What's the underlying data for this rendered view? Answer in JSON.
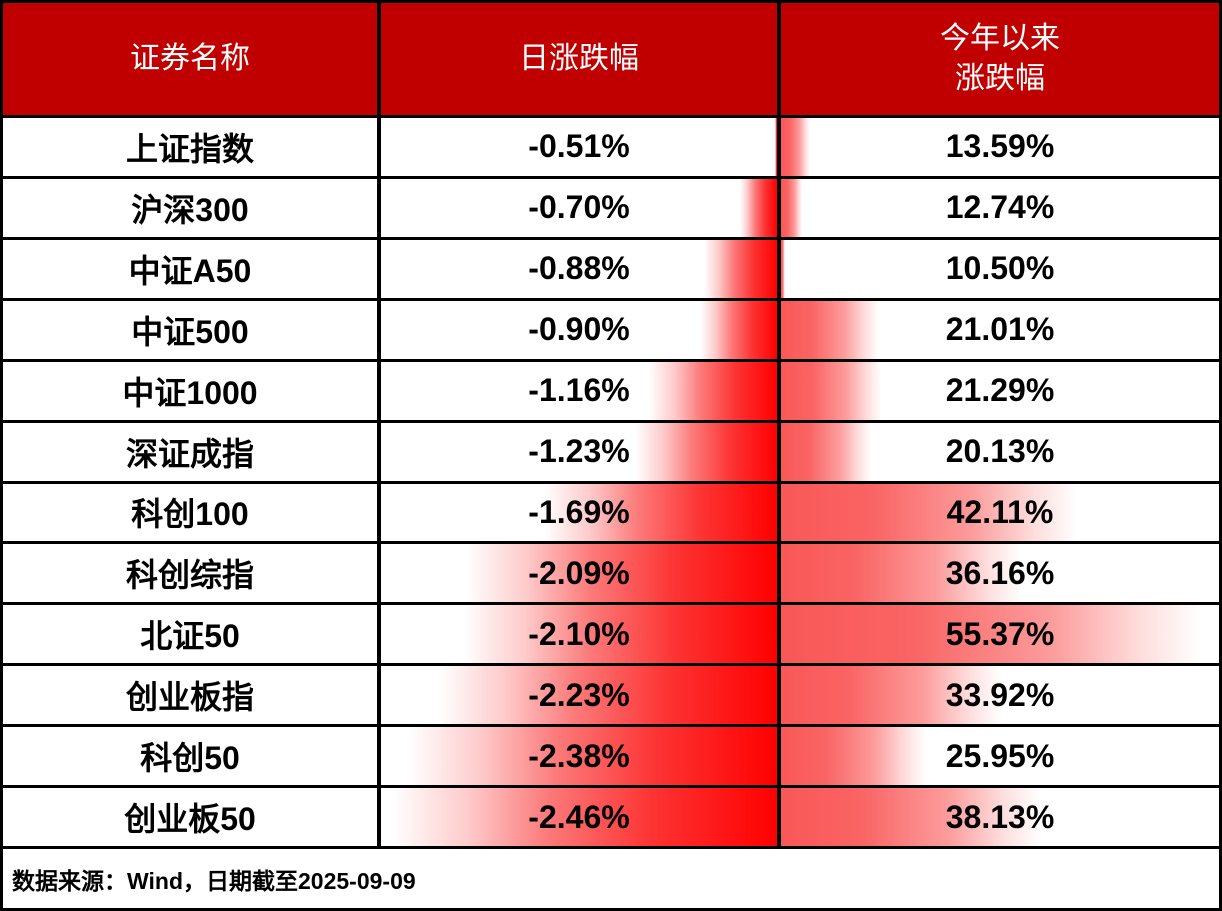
{
  "header": {
    "col1": "证券名称",
    "col2": "日涨跌幅",
    "col3_line1": "今年以来",
    "col3_line2": "涨跌幅"
  },
  "footer": {
    "source": "数据来源：Wind，日期截至2025-09-09"
  },
  "colors": {
    "header_bg": "#c00000",
    "header_text": "#ffffff",
    "body_text": "#000000",
    "border": "#000000",
    "bar_red_solid": "#fe0000",
    "bar_red_light": "#f95757",
    "row_bg": "#ffffff"
  },
  "rows": [
    {
      "name": "上证指数",
      "daily_label": "-0.51%",
      "ytd_label": "13.59%",
      "daily_pct": 0.5,
      "ytd_pct": 6.9
    },
    {
      "name": "沪深300",
      "daily_label": "-0.70%",
      "ytd_label": "12.74%",
      "daily_pct": 9.7,
      "ytd_pct": 5.0
    },
    {
      "name": "中证A50",
      "daily_label": "-0.88%",
      "ytd_label": "10.50%",
      "daily_pct": 19.0,
      "ytd_pct": 1.0
    },
    {
      "name": "中证500",
      "daily_label": "-0.90%",
      "ytd_label": "21.01%",
      "daily_pct": 20.0,
      "ytd_pct": 23.4
    },
    {
      "name": "中证1000",
      "daily_label": "-1.16%",
      "ytd_label": "21.29%",
      "daily_pct": 33.3,
      "ytd_pct": 24.0
    },
    {
      "name": "深证成指",
      "daily_label": "-1.23%",
      "ytd_label": "20.13%",
      "daily_pct": 36.9,
      "ytd_pct": 21.5
    },
    {
      "name": "科创100",
      "daily_label": "-1.69%",
      "ytd_label": "42.11%",
      "daily_pct": 60.5,
      "ytd_pct": 70.5
    },
    {
      "name": "科创综指",
      "daily_label": "-2.09%",
      "ytd_label": "36.16%",
      "daily_pct": 81.0,
      "ytd_pct": 57.2
    },
    {
      "name": "北证50",
      "daily_label": "-2.10%",
      "ytd_label": "55.37%",
      "daily_pct": 81.5,
      "ytd_pct": 100
    },
    {
      "name": "创业板指",
      "daily_label": "-2.23%",
      "ytd_label": "33.92%",
      "daily_pct": 88.2,
      "ytd_pct": 52.2
    },
    {
      "name": "科创50",
      "daily_label": "-2.38%",
      "ytd_label": "25.95%",
      "daily_pct": 95.9,
      "ytd_pct": 34.4
    },
    {
      "name": "创业板50",
      "daily_label": "-2.46%",
      "ytd_label": "38.13%",
      "daily_pct": 100,
      "ytd_pct": 61.6
    }
  ],
  "chart_data": {
    "type": "table",
    "title": "",
    "columns": [
      "证券名称",
      "日涨跌幅",
      "今年以来涨跌幅"
    ],
    "rows": [
      {
        "name": "上证指数",
        "daily_change_pct": -0.51,
        "ytd_change_pct": 13.59
      },
      {
        "name": "沪深300",
        "daily_change_pct": -0.7,
        "ytd_change_pct": 12.74
      },
      {
        "name": "中证A50",
        "daily_change_pct": -0.88,
        "ytd_change_pct": 10.5
      },
      {
        "name": "中证500",
        "daily_change_pct": -0.9,
        "ytd_change_pct": 21.01
      },
      {
        "name": "中证1000",
        "daily_change_pct": -1.16,
        "ytd_change_pct": 21.29
      },
      {
        "name": "深证成指",
        "daily_change_pct": -1.23,
        "ytd_change_pct": 20.13
      },
      {
        "name": "科创100",
        "daily_change_pct": -1.69,
        "ytd_change_pct": 42.11
      },
      {
        "name": "科创综指",
        "daily_change_pct": -2.09,
        "ytd_change_pct": 36.16
      },
      {
        "name": "北证50",
        "daily_change_pct": -2.1,
        "ytd_change_pct": 55.37
      },
      {
        "name": "创业板指",
        "daily_change_pct": -2.23,
        "ytd_change_pct": 33.92
      },
      {
        "name": "科创50",
        "daily_change_pct": -2.38,
        "ytd_change_pct": 25.95
      },
      {
        "name": "创业板50",
        "daily_change_pct": -2.46,
        "ytd_change_pct": 38.13
      }
    ],
    "databars": {
      "daily_column": {
        "anchor": "right",
        "scale_min_abs": 0.51,
        "scale_max_abs": 2.46,
        "gradient": "red solid at right fading to white leftward"
      },
      "ytd_column": {
        "anchor": "left",
        "scale_min": 10.5,
        "scale_max": 55.37,
        "gradient": "light red at left fading to white rightward"
      }
    },
    "source_note": "数据来源：Wind，日期截至2025-09-09"
  }
}
